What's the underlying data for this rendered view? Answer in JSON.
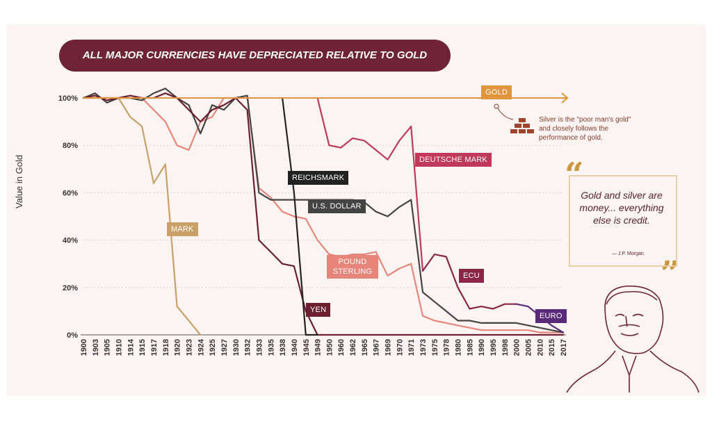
{
  "chart_data": {
    "type": "line",
    "title": "ALL MAJOR CURRENCIES HAVE DEPRECIATED RELATIVE TO GOLD",
    "y_label": "Value in Gold",
    "annotations": [
      "Silver is the \"poor man's gold\" and closely follows the performance of gold.",
      "Gold and silver are money... everything else is credit.",
      "— J.P. Morgan"
    ],
    "categories": [
      "1900",
      "1903",
      "1905",
      "1910",
      "1914",
      "1915",
      "1917",
      "1918",
      "1920",
      "1923",
      "1924",
      "1925",
      "1927",
      "1930",
      "1932",
      "1933",
      "1935",
      "1938",
      "1940",
      "1945",
      "1949",
      "1950",
      "1960",
      "1962",
      "1965",
      "1967",
      "1969",
      "1970",
      "1971",
      "1973",
      "1975",
      "1978",
      "1980",
      "1985",
      "1990",
      "1995",
      "1998",
      "2000",
      "2005",
      "2010",
      "2015",
      "2017"
    ],
    "ylim": [
      0,
      100
    ],
    "yticks": [
      {
        "value": 0,
        "label": "0%"
      },
      {
        "value": 20,
        "label": "20%"
      },
      {
        "value": 40,
        "label": "40%"
      },
      {
        "value": 60,
        "label": "60%"
      },
      {
        "value": 80,
        "label": "80%"
      },
      {
        "value": 100,
        "label": "100%"
      }
    ],
    "grid": true,
    "series": [
      {
        "name": "MARK",
        "color": "#c9a068",
        "values": [
          100,
          100,
          100,
          100,
          92,
          88,
          64,
          72,
          12,
          6,
          0,
          null,
          null,
          null,
          null,
          null,
          null,
          null,
          null,
          null,
          null,
          null,
          null,
          null,
          null,
          null,
          null,
          null,
          null,
          null,
          null,
          null,
          null,
          null,
          null,
          null,
          null,
          null,
          null,
          null,
          null,
          null
        ]
      },
      {
        "name": "POUND STERLING",
        "color": "#e8857a",
        "values": [
          100,
          100,
          100,
          100,
          100,
          100,
          95,
          90,
          80,
          78,
          90,
          92,
          100,
          100,
          100,
          62,
          58,
          52,
          50,
          49,
          40,
          34,
          33,
          34,
          34,
          35,
          25,
          28,
          30,
          8,
          6,
          5,
          4,
          3,
          2,
          2,
          2,
          2,
          2,
          1,
          1,
          1
        ]
      },
      {
        "name": "U.S. DOLLAR",
        "color": "#444444",
        "values": [
          100,
          102,
          98,
          100,
          100,
          99,
          102,
          104,
          100,
          97,
          85,
          97,
          95,
          100,
          101,
          60,
          57,
          57,
          57,
          57,
          57,
          57,
          57,
          57,
          56,
          52,
          50,
          54,
          57,
          18,
          14,
          10,
          6,
          6,
          5,
          5,
          5,
          5,
          4,
          3,
          2,
          1
        ]
      },
      {
        "name": "YEN",
        "color": "#6b1f2f",
        "values": [
          100,
          101,
          99,
          100,
          101,
          100,
          100,
          102,
          100,
          95,
          90,
          95,
          97,
          100,
          95,
          40,
          35,
          30,
          29,
          10,
          0,
          0,
          0,
          0,
          0,
          0,
          0,
          0,
          0,
          0,
          0,
          0,
          0,
          0,
          0,
          0,
          0,
          0,
          0,
          0,
          0,
          0
        ]
      },
      {
        "name": "REICHSMARK",
        "color": "#222222",
        "values": [
          null,
          null,
          null,
          null,
          null,
          null,
          null,
          null,
          null,
          null,
          null,
          null,
          null,
          null,
          null,
          null,
          null,
          100,
          60,
          0,
          0,
          null,
          null,
          null,
          null,
          null,
          null,
          null,
          null,
          null,
          null,
          null,
          null,
          null,
          null,
          null,
          null,
          null,
          null,
          null,
          null,
          null
        ]
      },
      {
        "name": "DEUTSCHE MARK",
        "color": "#c0395a",
        "values": [
          null,
          null,
          null,
          null,
          null,
          null,
          null,
          null,
          null,
          null,
          null,
          null,
          null,
          null,
          null,
          null,
          null,
          null,
          null,
          null,
          100,
          80,
          79,
          83,
          82,
          78,
          74,
          82,
          88,
          27,
          null,
          null,
          null,
          null,
          null,
          null,
          null,
          null,
          null,
          null,
          null,
          null
        ]
      },
      {
        "name": "ECU",
        "color": "#8b2547",
        "values": [
          null,
          null,
          null,
          null,
          null,
          null,
          null,
          null,
          null,
          null,
          null,
          null,
          null,
          null,
          null,
          null,
          null,
          null,
          null,
          null,
          null,
          null,
          null,
          null,
          null,
          null,
          null,
          null,
          null,
          27,
          34,
          33,
          20,
          11,
          12,
          11,
          13,
          13,
          null,
          null,
          null,
          null
        ]
      },
      {
        "name": "EURO",
        "color": "#5a2a7a",
        "values": [
          null,
          null,
          null,
          null,
          null,
          null,
          null,
          null,
          null,
          null,
          null,
          null,
          null,
          null,
          null,
          null,
          null,
          null,
          null,
          null,
          null,
          null,
          null,
          null,
          null,
          null,
          null,
          null,
          null,
          null,
          null,
          null,
          null,
          null,
          null,
          null,
          null,
          13,
          12,
          8,
          4,
          1
        ]
      },
      {
        "name": "GOLD",
        "color": "#e0953a",
        "values": [
          100,
          100,
          100,
          100,
          100,
          100,
          100,
          100,
          100,
          100,
          100,
          100,
          100,
          100,
          100,
          100,
          100,
          100,
          100,
          100,
          100,
          100,
          100,
          100,
          100,
          100,
          100,
          100,
          100,
          100,
          100,
          100,
          100,
          100,
          100,
          100,
          100,
          100,
          100,
          100,
          100,
          100
        ]
      }
    ]
  }
}
